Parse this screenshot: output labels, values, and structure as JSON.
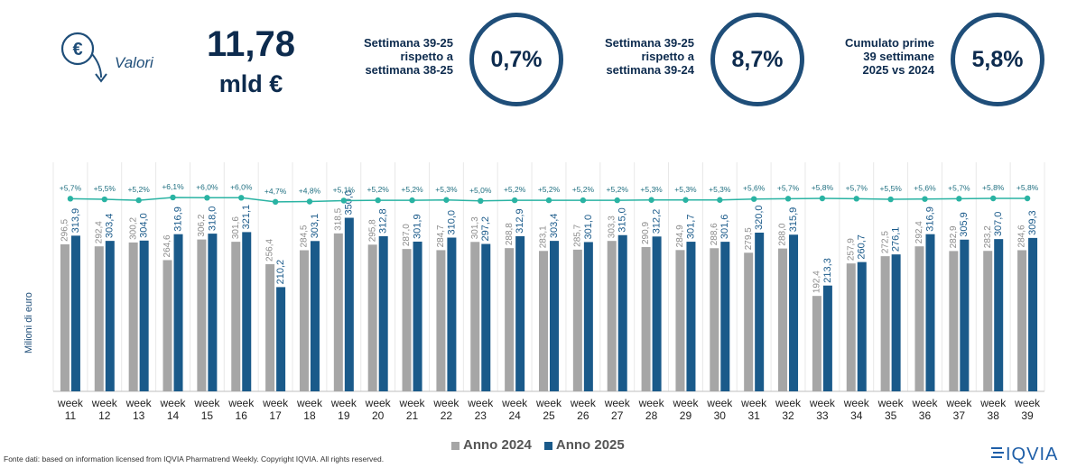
{
  "header": {
    "euro_symbol": "€",
    "valori_label": "Valori",
    "big_value": "11,78",
    "big_unit": "mld €"
  },
  "kpis": [
    {
      "label_lines": [
        "Settimana 39-25",
        "rispetto a",
        "settimana 38-25"
      ],
      "value": "0,7%"
    },
    {
      "label_lines": [
        "Settimana 39-25",
        "rispetto a",
        "settimana 39-24"
      ],
      "value": "8,7%"
    },
    {
      "label_lines": [
        "Cumulato prime",
        "39 settimane",
        "2025 vs 2024"
      ],
      "value": "5,8%"
    }
  ],
  "chart_data": {
    "type": "bar",
    "ylabel": "Milioni di euro",
    "categories": [
      "week 11",
      "week 12",
      "week 13",
      "week 14",
      "week 15",
      "week 16",
      "week 17",
      "week 18",
      "week 19",
      "week 20",
      "week 21",
      "week 22",
      "week 23",
      "week 24",
      "week 25",
      "week 26",
      "week 27",
      "week 28",
      "week 29",
      "week 30",
      "week 31",
      "week 32",
      "week 33",
      "week 34",
      "week 35",
      "week 36",
      "week 37",
      "week 38",
      "week 39"
    ],
    "series": [
      {
        "name": "Anno 2024",
        "color": "#a6a6a6",
        "values": [
          296.5,
          292.4,
          300.2,
          264.6,
          306.2,
          301.6,
          256.4,
          284.5,
          318.5,
          295.8,
          287.0,
          284.7,
          301.3,
          288.8,
          283.1,
          285.7,
          303.3,
          290.9,
          284.9,
          288.6,
          279.5,
          288.0,
          192.4,
          257.9,
          272.5,
          292.4,
          282.9,
          283.2,
          284.6
        ],
        "labels": [
          "296,5",
          "292,4",
          "300,2",
          "264,6",
          "306,2",
          "301,6",
          "256,4",
          "284,5",
          "318,5",
          "295,8",
          "287,0",
          "284,7",
          "301,3",
          "288,8",
          "283,1",
          "285,7",
          "303,3",
          "290,9",
          "284,9",
          "288,6",
          "279,5",
          "288,0",
          "192,4",
          "257,9",
          "272,5",
          "292,4",
          "282,9",
          "283,2",
          "284,6"
        ]
      },
      {
        "name": "Anno 2025",
        "color": "#1a5a8a",
        "values": [
          313.9,
          303.4,
          304.0,
          316.9,
          318.0,
          321.1,
          210.2,
          303.1,
          350.0,
          312.8,
          301.9,
          310.0,
          297.2,
          312.9,
          303.4,
          301.0,
          315.0,
          312.2,
          301.7,
          301.6,
          320.0,
          315.9,
          213.3,
          260.7,
          276.1,
          316.9,
          305.9,
          307.0,
          309.3
        ],
        "labels": [
          "313,9",
          "303,4",
          "304,0",
          "316,9",
          "318,0",
          "321,1",
          "210,2",
          "303,1",
          "350,0",
          "312,8",
          "301,9",
          "310,0",
          "297,2",
          "312,9",
          "303,4",
          "301,0",
          "315,0",
          "312,2",
          "301,7",
          "301,6",
          "320,0",
          "315,9",
          "213,3",
          "260,7",
          "276,1",
          "316,9",
          "305,9",
          "307,0",
          "309,3"
        ]
      }
    ],
    "growth_line": {
      "color": "#2ab3a3",
      "values": [
        5.7,
        5.5,
        5.2,
        6.1,
        6.0,
        6.0,
        4.7,
        4.8,
        5.1,
        5.2,
        5.2,
        5.3,
        5.0,
        5.2,
        5.2,
        5.2,
        5.2,
        5.3,
        5.3,
        5.3,
        5.6,
        5.7,
        5.8,
        5.7,
        5.5,
        5.6,
        5.7,
        5.8,
        5.8
      ],
      "labels": [
        "+5,7%",
        "+5,5%",
        "+5,2%",
        "+6,1%",
        "+6,0%",
        "+6,0%",
        "+4,7%",
        "+4,8%",
        "+5,1%",
        "+5,2%",
        "+5,2%",
        "+5,3%",
        "+5,0%",
        "+5,2%",
        "+5,2%",
        "+5,2%",
        "+5,2%",
        "+5,3%",
        "+5,3%",
        "+5,3%",
        "+5,6%",
        "+5,7%",
        "+5,8%",
        "+5,7%",
        "+5,5%",
        "+5,6%",
        "+5,7%",
        "+5,8%",
        "+5,8%"
      ]
    },
    "grid": false,
    "legend_position": "bottom"
  },
  "legend": {
    "item1": "Anno 2024",
    "item2": "Anno 2025",
    "color1": "#a6a6a6",
    "color2": "#1a5a8a"
  },
  "footer": "Fonte dati: based on information licensed from IQVIA Pharmatrend Weekly. Copyright IQVIA. All rights reserved.",
  "logo_text": "IQVIA"
}
